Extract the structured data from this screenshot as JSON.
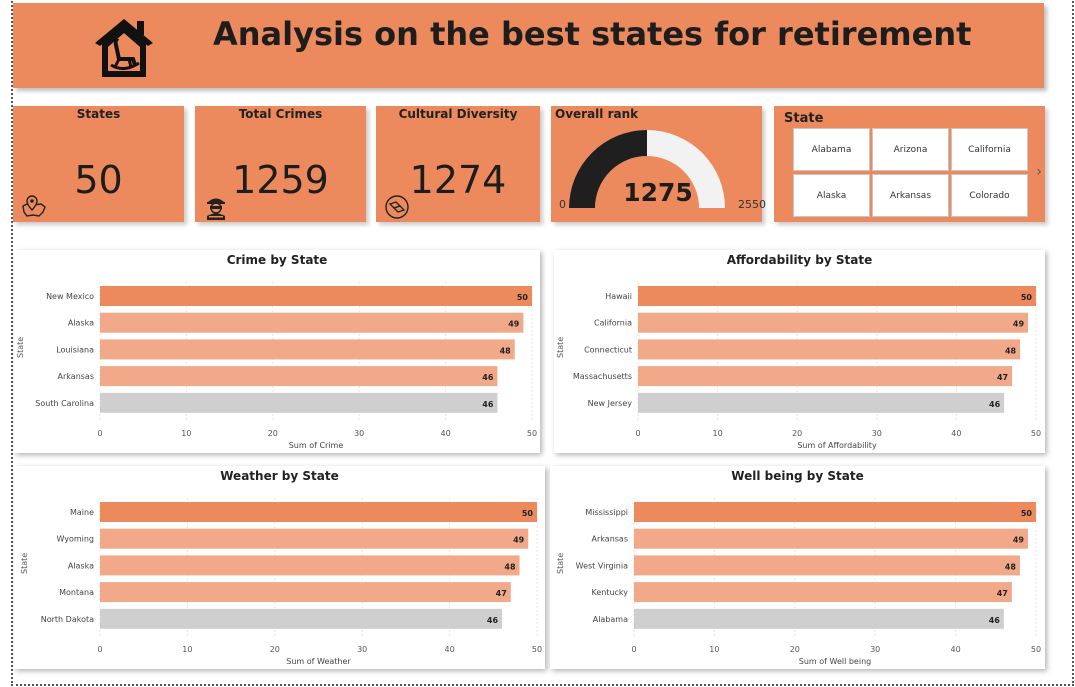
{
  "header": {
    "title": "Analysis on the best states for retirement",
    "logo_icon": "rocking-chair-house-icon"
  },
  "cards": [
    {
      "title": "States",
      "value": "50",
      "icon": "us-map-pin-icon"
    },
    {
      "title": "Total Crimes",
      "value": "1259",
      "icon": "thief-icon"
    },
    {
      "title": "Cultural Diversity",
      "value": "1274",
      "icon": "diversity-hands-icon"
    }
  ],
  "gauge": {
    "title": "Overall rank",
    "value": "1275",
    "min": "0",
    "max": "2550",
    "fraction": 0.5
  },
  "slicer": {
    "title": "State",
    "items": [
      "Alabama",
      "Arizona",
      "California",
      "Alaska",
      "Arkansas",
      "Colorado"
    ],
    "next_icon": "chevron-right-icon"
  },
  "colors": {
    "accent": "#EC8A5E",
    "bar_top": "#EC8A5E",
    "bar_mid": "#F2A98A",
    "bar_low": "#CFCFCF",
    "gauge_fill": "#1f1f1f",
    "gauge_empty": "#f2f2f2"
  },
  "chart_data": [
    {
      "type": "bar",
      "orientation": "horizontal",
      "title": "Crime by State",
      "xlabel": "Sum of Crime",
      "ylabel": "State",
      "categories": [
        "New Mexico",
        "Alaska",
        "Louisiana",
        "Arkansas",
        "South Carolina"
      ],
      "values": [
        50,
        49,
        48,
        46,
        46
      ],
      "xlim": [
        0,
        50
      ],
      "xticks": [
        "0",
        "10",
        "20",
        "30",
        "40",
        "50"
      ],
      "grid": true
    },
    {
      "type": "bar",
      "orientation": "horizontal",
      "title": "Affordability by State",
      "xlabel": "Sum of Affordability",
      "ylabel": "State",
      "categories": [
        "Hawaii",
        "California",
        "Connecticut",
        "Massachusetts",
        "New Jersey"
      ],
      "values": [
        50,
        49,
        48,
        47,
        46
      ],
      "xlim": [
        0,
        50
      ],
      "xticks": [
        "0",
        "10",
        "20",
        "30",
        "40",
        "50"
      ],
      "grid": true
    },
    {
      "type": "bar",
      "orientation": "horizontal",
      "title": "Weather by State",
      "xlabel": "Sum of Weather",
      "ylabel": "State",
      "categories": [
        "Maine",
        "Wyoming",
        "Alaska",
        "Montana",
        "North Dakota"
      ],
      "values": [
        50,
        49,
        48,
        47,
        46
      ],
      "xlim": [
        0,
        50
      ],
      "xticks": [
        "0",
        "10",
        "20",
        "30",
        "40",
        "50"
      ],
      "grid": true
    },
    {
      "type": "bar",
      "orientation": "horizontal",
      "title": "Well being by State",
      "xlabel": "Sum of Well being",
      "ylabel": "State",
      "categories": [
        "Mississippi",
        "Arkansas",
        "West Virginia",
        "Kentucky",
        "Alabama"
      ],
      "values": [
        50,
        49,
        48,
        47,
        46
      ],
      "xlim": [
        0,
        50
      ],
      "xticks": [
        "0",
        "10",
        "20",
        "30",
        "40",
        "50"
      ],
      "grid": true
    }
  ]
}
